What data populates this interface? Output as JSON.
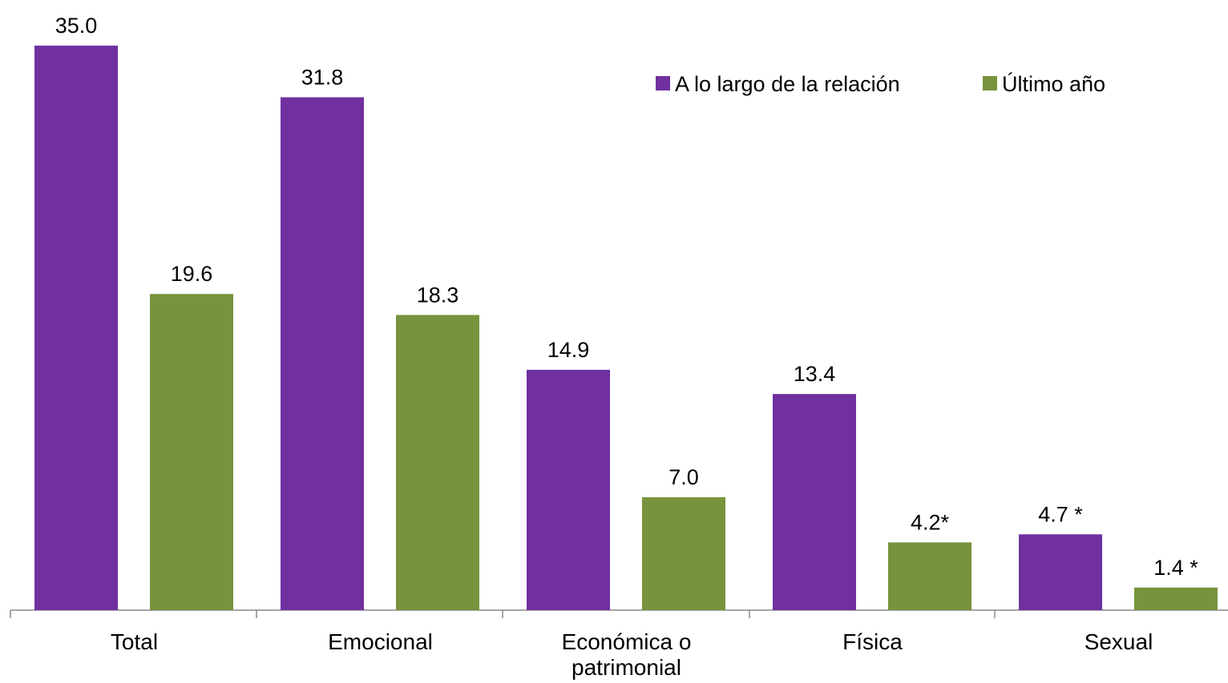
{
  "chart_data": {
    "type": "bar",
    "categories": [
      "Total",
      "Emocional",
      "Económica o patrimonial",
      "Física",
      "Sexual"
    ],
    "series": [
      {
        "name": "A lo largo de la relación",
        "color": "#7030a0",
        "values": [
          35.0,
          31.8,
          14.9,
          13.4,
          4.7
        ],
        "value_labels": [
          "35.0",
          "31.8",
          "14.9",
          "13.4",
          "4.7 *"
        ]
      },
      {
        "name": "Último año",
        "color": "#77933c",
        "values": [
          19.6,
          18.3,
          7.0,
          4.2,
          1.4
        ],
        "value_labels": [
          "19.6",
          "18.3",
          "7.0",
          "4.2*",
          "1.4 *"
        ]
      }
    ],
    "legend": "top-right"
  }
}
